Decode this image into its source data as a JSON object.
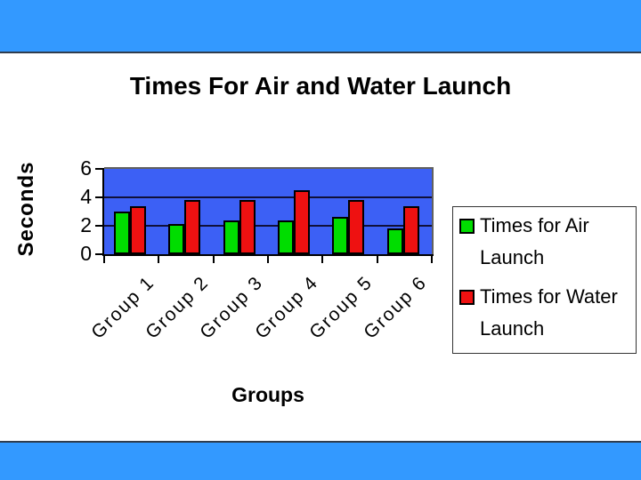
{
  "slide": {
    "banner_color": "#3399ff",
    "banner_edge_color": "#2f3c4e"
  },
  "chart_data": {
    "type": "bar",
    "title": "Times For Air and Water Launch",
    "xlabel": "Groups",
    "ylabel": "Seconds",
    "categories": [
      "Group 1",
      "Group 2",
      "Group 3",
      "Group 4",
      "Group 5",
      "Group 6"
    ],
    "series": [
      {
        "name": "Times for Air Launch",
        "color": "#00dd00",
        "values": [
          3.0,
          2.1,
          2.4,
          2.4,
          2.6,
          1.8
        ]
      },
      {
        "name": "Times for Water Launch",
        "color": "#ee1111",
        "values": [
          3.4,
          3.8,
          3.8,
          4.5,
          3.8,
          3.4
        ]
      }
    ],
    "ylim": [
      0,
      6
    ],
    "yticks": [
      0,
      2,
      4,
      6
    ],
    "grid": true,
    "legend_position": "right",
    "category_label_angle": -45,
    "plot_bg": "#3c60f5",
    "gridline_color": "#10103a",
    "axis_color": "#000000",
    "plot_frame_color": "#606060",
    "bar_border_color": "#000000"
  }
}
